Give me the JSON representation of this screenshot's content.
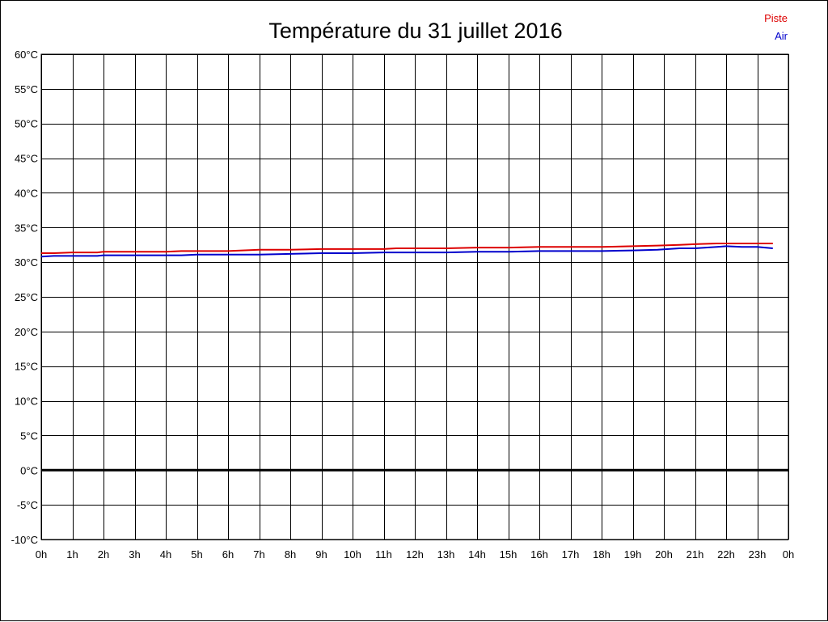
{
  "chart_data": {
    "type": "line",
    "title": "Température du 31 juillet 2016",
    "xlabel": "",
    "ylabel": "",
    "xlim": [
      0,
      24
    ],
    "ylim": [
      -10,
      60
    ],
    "grid": true,
    "legend_position": "top-right",
    "x_tick_labels": [
      "0h",
      "1h",
      "2h",
      "3h",
      "4h",
      "5h",
      "6h",
      "7h",
      "8h",
      "9h",
      "10h",
      "11h",
      "12h",
      "13h",
      "14h",
      "15h",
      "16h",
      "17h",
      "18h",
      "19h",
      "20h",
      "21h",
      "22h",
      "23h",
      "0h"
    ],
    "y_ticks": [
      -10,
      -5,
      0,
      5,
      10,
      15,
      20,
      25,
      30,
      35,
      40,
      45,
      50,
      55,
      60
    ],
    "y_tick_labels": [
      "-10°C",
      "-5°C",
      "0°C",
      "5°C",
      "10°C",
      "15°C",
      "20°C",
      "25°C",
      "30°C",
      "35°C",
      "40°C",
      "45°C",
      "50°C",
      "55°C",
      "60°C"
    ],
    "zero_line": 0,
    "x": [
      0,
      0.4,
      1,
      1.8,
      2,
      3,
      4,
      4.5,
      5,
      6,
      7,
      8,
      9,
      10,
      11,
      11.4,
      12,
      13,
      14,
      15,
      16,
      17,
      18,
      19,
      19.8,
      20.5,
      21,
      21.7,
      22,
      22.5,
      23,
      23.5
    ],
    "series": [
      {
        "name": "Piste",
        "color": "#dd0000",
        "values": [
          31.3,
          31.3,
          31.4,
          31.4,
          31.5,
          31.5,
          31.5,
          31.6,
          31.6,
          31.6,
          31.8,
          31.8,
          31.9,
          31.9,
          31.9,
          32.0,
          32.0,
          32.0,
          32.1,
          32.1,
          32.2,
          32.2,
          32.2,
          32.3,
          32.4,
          32.5,
          32.6,
          32.7,
          32.7,
          32.7,
          32.7,
          32.7
        ]
      },
      {
        "name": "Air",
        "color": "#0000cc",
        "values": [
          30.8,
          30.9,
          30.9,
          30.9,
          31.0,
          31.0,
          31.0,
          31.0,
          31.1,
          31.1,
          31.1,
          31.2,
          31.3,
          31.3,
          31.4,
          31.4,
          31.4,
          31.4,
          31.5,
          31.5,
          31.6,
          31.6,
          31.6,
          31.7,
          31.8,
          32.0,
          32.0,
          32.2,
          32.3,
          32.2,
          32.2,
          32.0
        ]
      }
    ]
  }
}
